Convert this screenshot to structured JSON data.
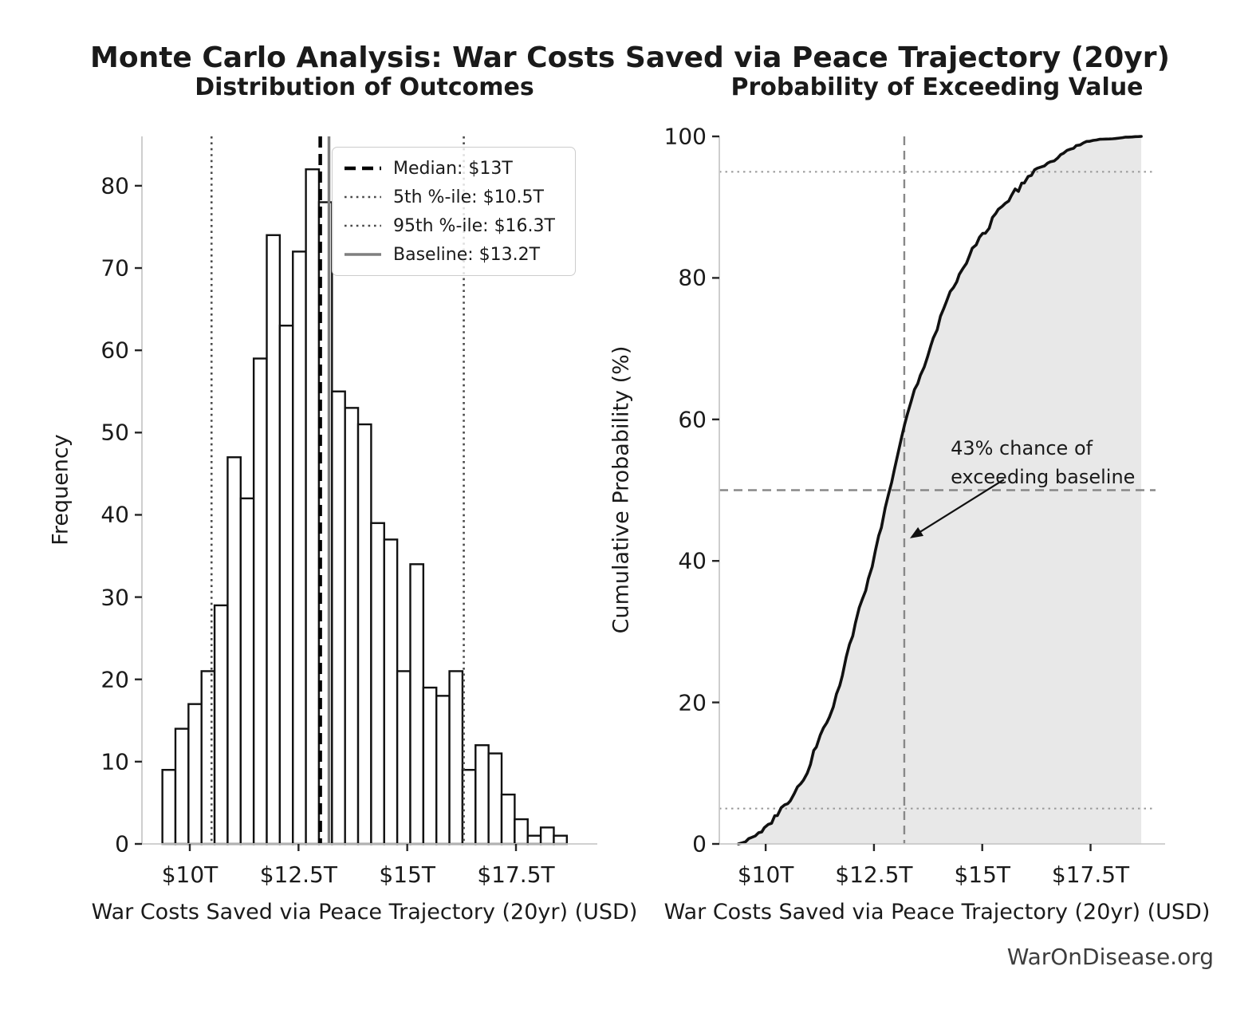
{
  "page": {
    "main_title": "Monte Carlo Analysis: War Costs Saved via Peace Trajectory (20yr)",
    "footer_credit": "WarOnDisease.org"
  },
  "chart_data": [
    {
      "id": "distribution",
      "type": "bar",
      "title": "Distribution of Outcomes",
      "xlabel": "War Costs Saved via Peace Trajectory (20yr) (USD)",
      "ylabel": "Frequency",
      "xlim": [
        8.9,
        19.15
      ],
      "ylim": [
        0,
        86
      ],
      "grid": false,
      "xticks": [
        {
          "v": 10.0,
          "label": "$10T"
        },
        {
          "v": 12.5,
          "label": "$12.5T"
        },
        {
          "v": 15.0,
          "label": "$15T"
        },
        {
          "v": 17.5,
          "label": "$17.5T"
        }
      ],
      "yticks": [
        {
          "v": 0,
          "label": "0"
        },
        {
          "v": 10,
          "label": "10"
        },
        {
          "v": 20,
          "label": "20"
        },
        {
          "v": 30,
          "label": "30"
        },
        {
          "v": 40,
          "label": "40"
        },
        {
          "v": 50,
          "label": "50"
        },
        {
          "v": 60,
          "label": "60"
        },
        {
          "v": 70,
          "label": "70"
        },
        {
          "v": 80,
          "label": "80"
        }
      ],
      "histogram": {
        "bin_start_trillions": 9.37,
        "bin_width_trillions": 0.3,
        "counts": [
          9,
          14,
          17,
          21,
          29,
          47,
          42,
          59,
          74,
          63,
          72,
          82,
          78,
          55,
          53,
          51,
          39,
          37,
          21,
          34,
          19,
          18,
          21,
          9,
          12,
          11,
          6,
          3,
          1,
          2,
          1
        ],
        "total_samples": 1000,
        "bar_fill": "#ffffff",
        "bar_edge": "#111111"
      },
      "ref_lines": [
        {
          "name": "median",
          "value": 13.0,
          "label": "Median: $13T",
          "style": "dashed",
          "color": "#000000",
          "width": 4.5,
          "dash": "14 8"
        },
        {
          "name": "p5",
          "value": 10.5,
          "label": "5th %-ile: $10.5T",
          "style": "dotted",
          "color": "#4a4a4a",
          "width": 2.6,
          "dash": "2.6 4.8"
        },
        {
          "name": "p95",
          "value": 16.3,
          "label": "95th %-ile: $16.3T",
          "style": "dotted",
          "color": "#4a4a4a",
          "width": 2.6,
          "dash": "2.6 4.8"
        },
        {
          "name": "baseline",
          "value": 13.2,
          "label": "Baseline: $13.2T",
          "style": "solid",
          "color": "#7f7f7f",
          "width": 3.5,
          "dash": ""
        }
      ],
      "legend_position": "upper right"
    },
    {
      "id": "exceedance",
      "type": "line",
      "title": "Probability of Exceeding Value",
      "xlabel": "War Costs Saved via Peace Trajectory (20yr) (USD)",
      "ylabel": "Cumulative Probability (%)",
      "xlim": [
        8.93,
        19.0
      ],
      "ylim": [
        0,
        100
      ],
      "grid": false,
      "xticks": [
        {
          "v": 10.0,
          "label": "$10T"
        },
        {
          "v": 12.5,
          "label": "$12.5T"
        },
        {
          "v": 15.0,
          "label": "$15T"
        },
        {
          "v": 17.5,
          "label": "$17.5T"
        }
      ],
      "yticks": [
        {
          "v": 0,
          "label": "0"
        },
        {
          "v": 20,
          "label": "20"
        },
        {
          "v": 40,
          "label": "40"
        },
        {
          "v": 60,
          "label": "60"
        },
        {
          "v": 80,
          "label": "80"
        },
        {
          "v": 100,
          "label": "100"
        }
      ],
      "curve": {
        "x_start_trillions": 9.37,
        "x_step_trillions": 0.3,
        "cumulative_pct": [
          0.9,
          2.3,
          4.0,
          6.1,
          9.0,
          13.7,
          17.9,
          23.8,
          31.2,
          37.5,
          44.7,
          52.9,
          60.7,
          66.2,
          71.5,
          76.6,
          80.5,
          84.2,
          86.3,
          89.7,
          91.6,
          93.4,
          95.5,
          96.4,
          97.6,
          98.7,
          99.3,
          99.6,
          99.7,
          99.9,
          100.0
        ],
        "color": "#111111",
        "width": 3.6,
        "fill_color": "#e8e8e8"
      },
      "h_ref_lines": [
        {
          "name": "p95-line",
          "value": 95,
          "color": "#999999",
          "width": 2.0,
          "dash": "2.5 5"
        },
        {
          "name": "median-line",
          "value": 50,
          "color": "#888888",
          "width": 2.4,
          "dash": "11 7"
        },
        {
          "name": "p5-line",
          "value": 5,
          "color": "#999999",
          "width": 2.0,
          "dash": "2.5 5"
        }
      ],
      "v_ref_line": {
        "name": "baseline-line",
        "value": 13.2,
        "color": "#888888",
        "width": 2.4,
        "dash": "11 7"
      },
      "annotation": {
        "lines": [
          "43% chance of",
          "exceeding baseline"
        ],
        "exceed_probability_pct": 43,
        "text_pos": [
          14.27,
          58
        ],
        "arrow_from": [
          15.5,
          51.5
        ],
        "arrow_to": [
          13.33,
          43.2
        ]
      }
    }
  ]
}
